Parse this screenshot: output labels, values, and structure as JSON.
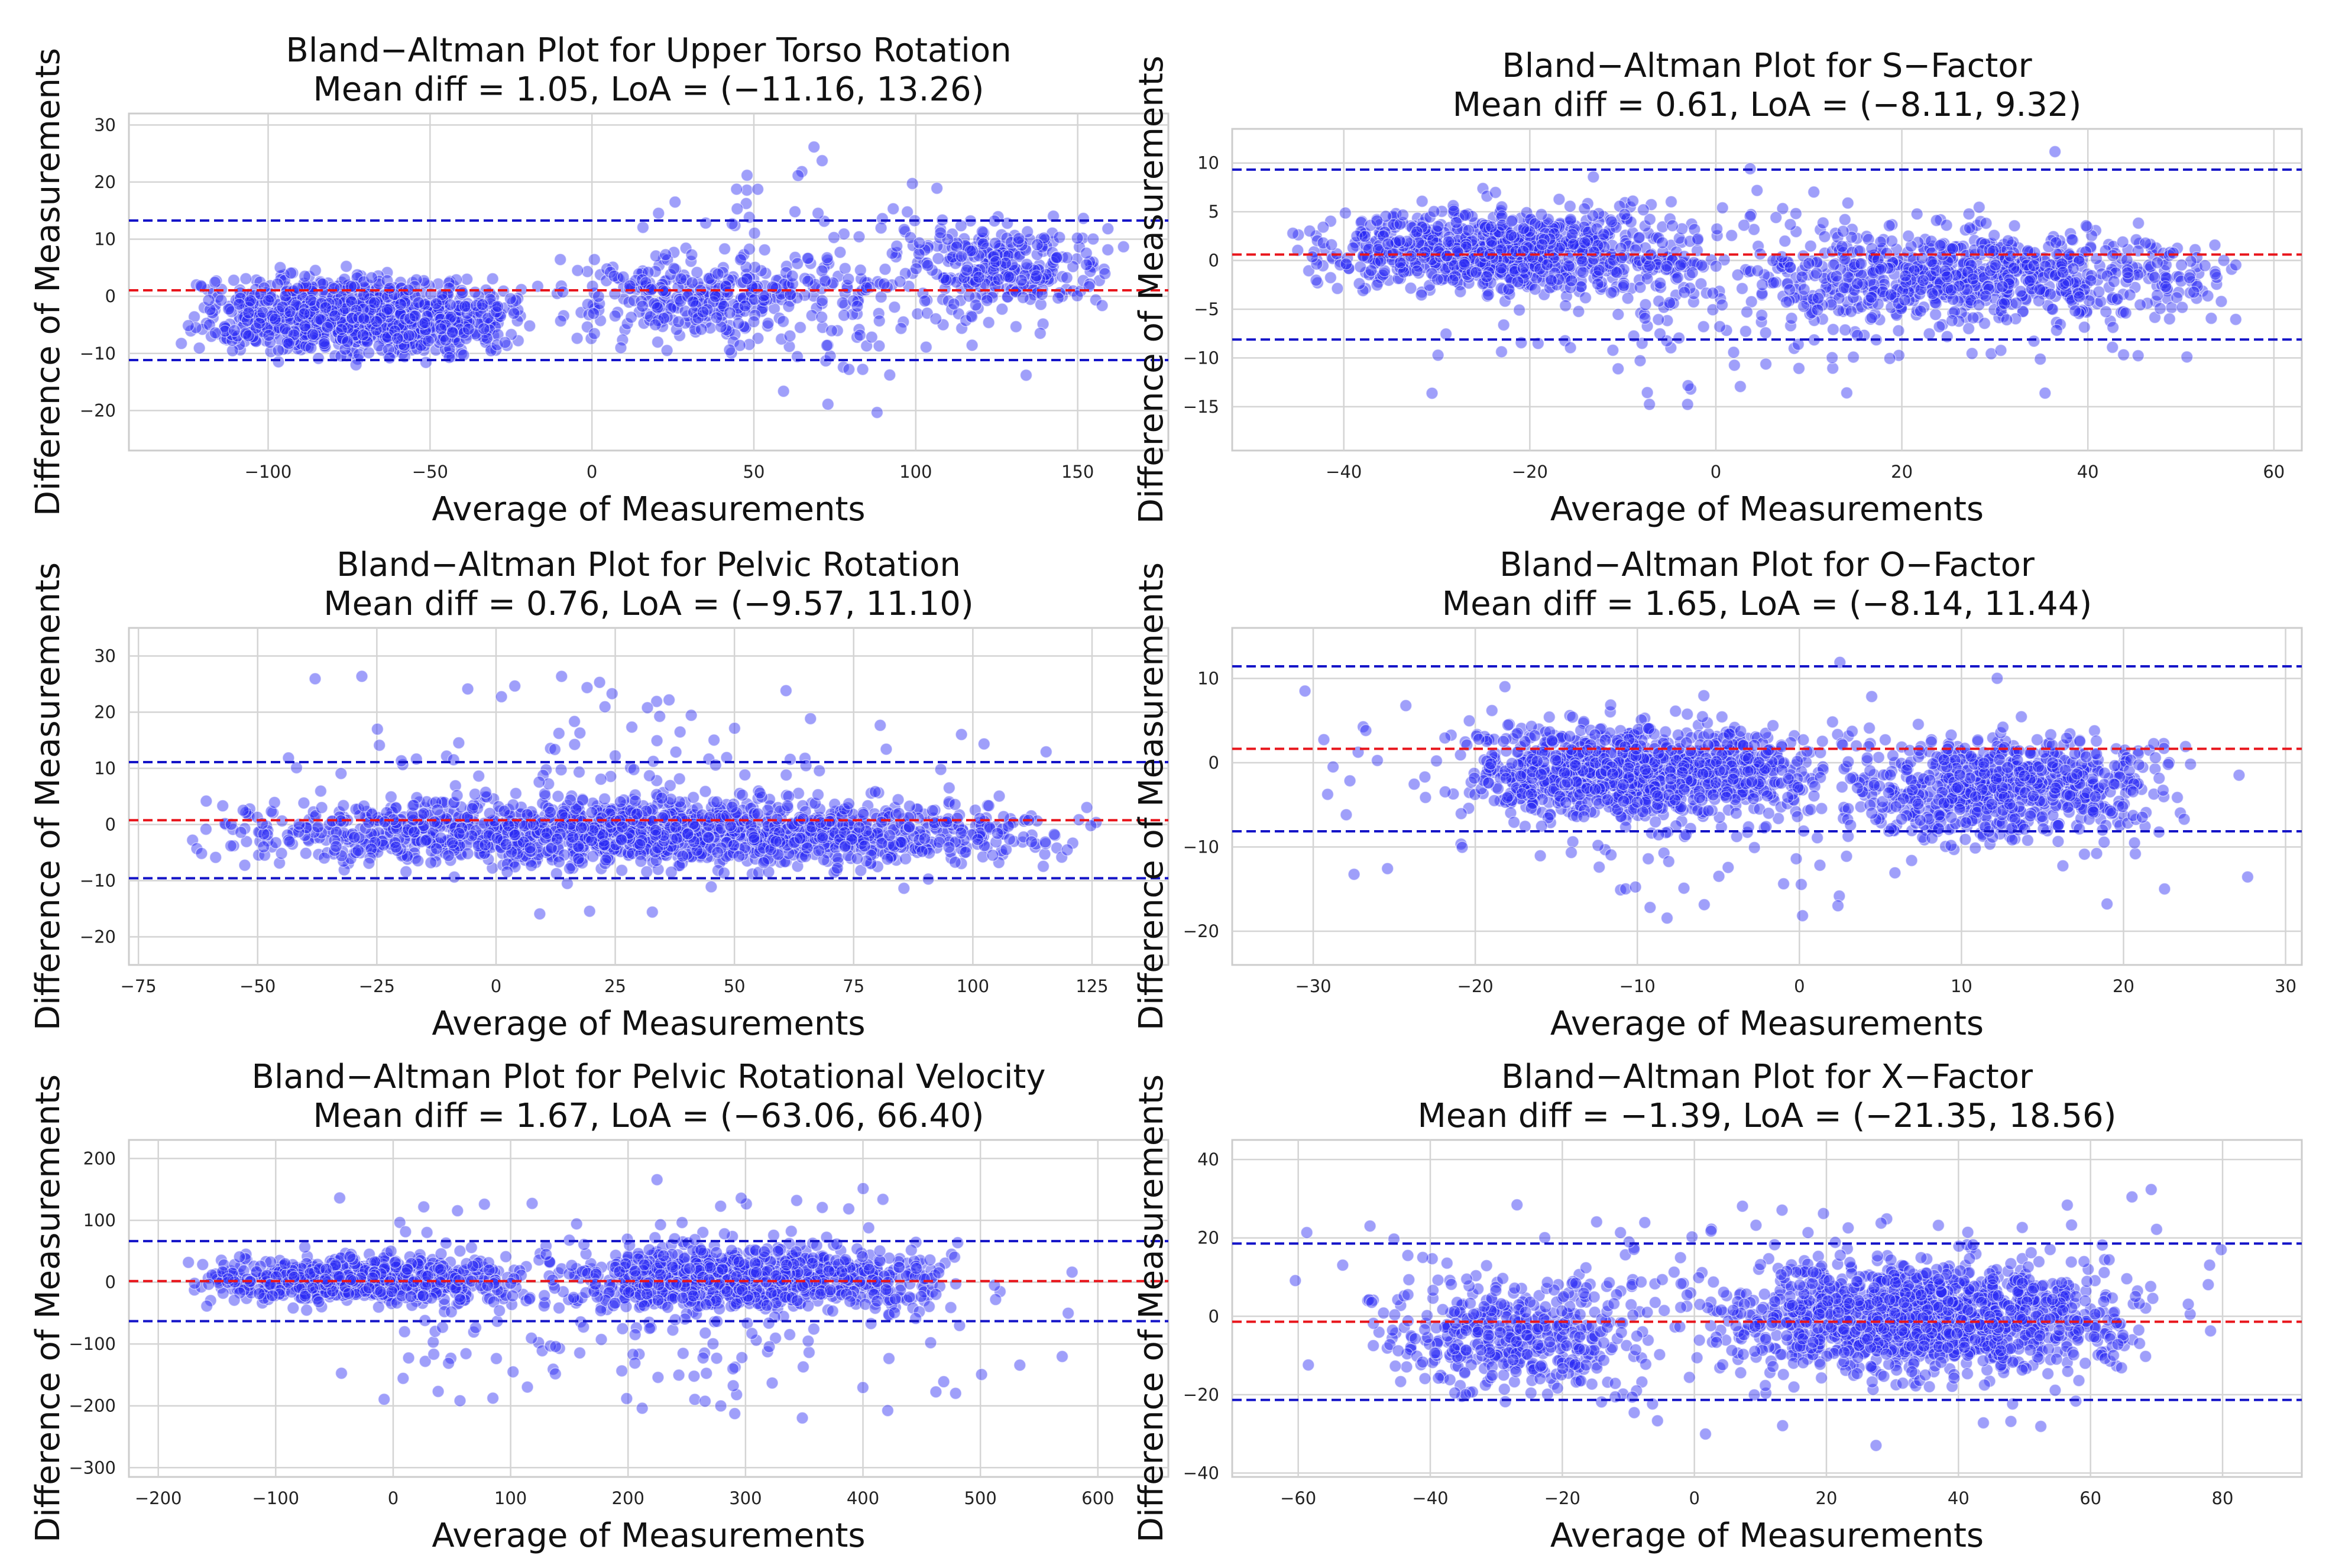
{
  "chart_data": [
    {
      "type": "scatter",
      "title": "Bland−Altman Plot for Upper Torso Rotation",
      "subtitle": "Mean diff = 1.05, LoA = (−11.16, 13.26)",
      "xlabel": "Average of Measurements",
      "ylabel": "Difference of Measurements",
      "xlim": [
        -143,
        178
      ],
      "ylim": [
        -27,
        32
      ],
      "xticks": [
        -100,
        -50,
        0,
        50,
        100,
        150
      ],
      "xtick_labels": [
        "−100",
        "−50",
        "0",
        "50",
        "100",
        "150"
      ],
      "yticks": [
        -20,
        -10,
        0,
        10,
        20,
        30
      ],
      "ytick_labels": [
        "−20",
        "−10",
        "0",
        "10",
        "20",
        "30"
      ],
      "mean_diff": 1.05,
      "loa_lower": -11.16,
      "loa_upper": 13.26,
      "mean_line_color": "#e8151b",
      "loa_line_color": "#1414c8",
      "point_color": "#2a2af5",
      "clusters": [
        {
          "x": [
            -128,
            -18
          ],
          "y": [
            -13,
            6
          ],
          "n": 1100
        },
        {
          "x": [
            -18,
            95
          ],
          "y": [
            -10,
            10
          ],
          "n": 320
        },
        {
          "x": [
            90,
            165
          ],
          "y": [
            -6,
            16
          ],
          "n": 280
        },
        {
          "x": [
            0,
            150
          ],
          "y": [
            -24,
            29
          ],
          "n": 150
        }
      ]
    },
    {
      "type": "scatter",
      "title": "Bland−Altman Plot for S−Factor",
      "subtitle": "Mean diff = 0.61, LoA = (−8.11, 9.32)",
      "xlabel": "Average of Measurements",
      "ylabel": "Difference of Measurements",
      "xlim": [
        -52,
        63
      ],
      "ylim": [
        -19.5,
        13.5
      ],
      "xticks": [
        -40,
        -20,
        0,
        20,
        40,
        60
      ],
      "xtick_labels": [
        "−40",
        "−20",
        "0",
        "20",
        "40",
        "60"
      ],
      "yticks": [
        -15,
        -10,
        -5,
        0,
        5,
        10
      ],
      "ytick_labels": [
        "−15",
        "−10",
        "−5",
        "0",
        "5",
        "10"
      ],
      "mean_diff": 0.61,
      "loa_lower": -8.11,
      "loa_upper": 9.32,
      "mean_line_color": "#e8151b",
      "loa_line_color": "#1414c8",
      "point_color": "#2a2af5",
      "clusters": [
        {
          "x": [
            -46,
            0
          ],
          "y": [
            -5,
            7
          ],
          "n": 900
        },
        {
          "x": [
            0,
            58
          ],
          "y": [
            -8,
            5
          ],
          "n": 700
        },
        {
          "x": [
            -40,
            56
          ],
          "y": [
            -18,
            12
          ],
          "n": 260
        }
      ]
    },
    {
      "type": "scatter",
      "title": "Bland−Altman Plot for Pelvic Rotation",
      "subtitle": "Mean diff = 0.76, LoA = (−9.57, 11.10)",
      "xlabel": "Average of Measurements",
      "ylabel": "Difference of Measurements",
      "xlim": [
        -77,
        141
      ],
      "ylim": [
        -25,
        35
      ],
      "xticks": [
        -75,
        -50,
        -25,
        0,
        25,
        50,
        75,
        100,
        125
      ],
      "xtick_labels": [
        "−75",
        "−50",
        "−25",
        "0",
        "25",
        "50",
        "75",
        "100",
        "125"
      ],
      "yticks": [
        -20,
        -10,
        0,
        10,
        20,
        30
      ],
      "ytick_labels": [
        "−20",
        "−10",
        "0",
        "10",
        "20",
        "30"
      ],
      "mean_diff": 0.76,
      "loa_lower": -9.57,
      "loa_upper": 11.1,
      "mean_line_color": "#e8151b",
      "loa_line_color": "#1414c8",
      "point_color": "#2a2af5",
      "clusters": [
        {
          "x": [
            -66,
            130
          ],
          "y": [
            -10,
            7
          ],
          "n": 1500
        },
        {
          "x": [
            -60,
            125
          ],
          "y": [
            -22,
            32
          ],
          "n": 200
        }
      ]
    },
    {
      "type": "scatter",
      "title": "Bland−Altman Plot for O−Factor",
      "subtitle": "Mean diff = 1.65, LoA = (−8.14, 11.44)",
      "xlabel": "Average of Measurements",
      "ylabel": "Difference of Measurements",
      "xlim": [
        -35,
        31
      ],
      "ylim": [
        -24,
        16
      ],
      "xticks": [
        -30,
        -20,
        -10,
        0,
        10,
        20,
        30
      ],
      "xtick_labels": [
        "−30",
        "−20",
        "−10",
        "0",
        "10",
        "20",
        "30"
      ],
      "yticks": [
        -20,
        -10,
        0,
        10
      ],
      "ytick_labels": [
        "−20",
        "−10",
        "0",
        "10"
      ],
      "mean_diff": 1.65,
      "loa_lower": -8.14,
      "loa_upper": 11.44,
      "mean_line_color": "#e8151b",
      "loa_line_color": "#1414c8",
      "point_color": "#2a2af5",
      "clusters": [
        {
          "x": [
            -22,
            2
          ],
          "y": [
            -9,
            7
          ],
          "n": 1000
        },
        {
          "x": [
            2,
            24
          ],
          "y": [
            -12,
            6
          ],
          "n": 700
        },
        {
          "x": [
            -32,
            28
          ],
          "y": [
            -22,
            14
          ],
          "n": 220
        }
      ]
    },
    {
      "type": "scatter",
      "title": "Bland−Altman Plot for Pelvic Rotational Velocity",
      "subtitle": "Mean diff = 1.67, LoA = (−63.06, 66.40)",
      "xlabel": "Average of Measurements",
      "ylabel": "Difference of Measurements",
      "xlim": [
        -225,
        660
      ],
      "ylim": [
        -315,
        230
      ],
      "xticks": [
        -200,
        -100,
        0,
        100,
        200,
        300,
        400,
        500,
        600
      ],
      "xtick_labels": [
        "−200",
        "−100",
        "0",
        "100",
        "200",
        "300",
        "400",
        "500",
        "600"
      ],
      "yticks": [
        -300,
        -200,
        -100,
        0,
        100,
        200
      ],
      "ytick_labels": [
        "−300",
        "−200",
        "−100",
        "0",
        "100",
        "200"
      ],
      "mean_diff": 1.67,
      "loa_lower": -63.06,
      "loa_upper": 66.4,
      "mean_line_color": "#e8151b",
      "loa_line_color": "#1414c8",
      "point_color": "#2a2af5",
      "clusters": [
        {
          "x": [
            -180,
            120
          ],
          "y": [
            -50,
            60
          ],
          "n": 700
        },
        {
          "x": [
            120,
            490
          ],
          "y": [
            -70,
            80
          ],
          "n": 900
        },
        {
          "x": [
            -100,
            620
          ],
          "y": [
            -290,
            200
          ],
          "n": 220
        }
      ]
    },
    {
      "type": "scatter",
      "title": "Bland−Altman Plot for X−Factor",
      "subtitle": "Mean diff = −1.39, LoA = (−21.35, 18.56)",
      "xlabel": "Average of Measurements",
      "ylabel": "Difference of Measurements",
      "xlim": [
        -70,
        92
      ],
      "ylim": [
        -41,
        45
      ],
      "xticks": [
        -60,
        -40,
        -20,
        0,
        20,
        40,
        60,
        80
      ],
      "xtick_labels": [
        "−60",
        "−40",
        "−20",
        "0",
        "20",
        "40",
        "60",
        "80"
      ],
      "yticks": [
        -40,
        -20,
        0,
        20,
        40
      ],
      "ytick_labels": [
        "−40",
        "−20",
        "0",
        "20",
        "40"
      ],
      "mean_diff": -1.39,
      "loa_lower": -21.35,
      "loa_upper": 18.56,
      "mean_line_color": "#e8151b",
      "loa_line_color": "#1414c8",
      "point_color": "#2a2af5",
      "clusters": [
        {
          "x": [
            0,
            70
          ],
          "y": [
            -20,
            20
          ],
          "n": 1300
        },
        {
          "x": [
            -50,
            -5
          ],
          "y": [
            -25,
            15
          ],
          "n": 400
        },
        {
          "x": [
            -65,
            88
          ],
          "y": [
            -37,
            40
          ],
          "n": 260
        }
      ]
    }
  ]
}
